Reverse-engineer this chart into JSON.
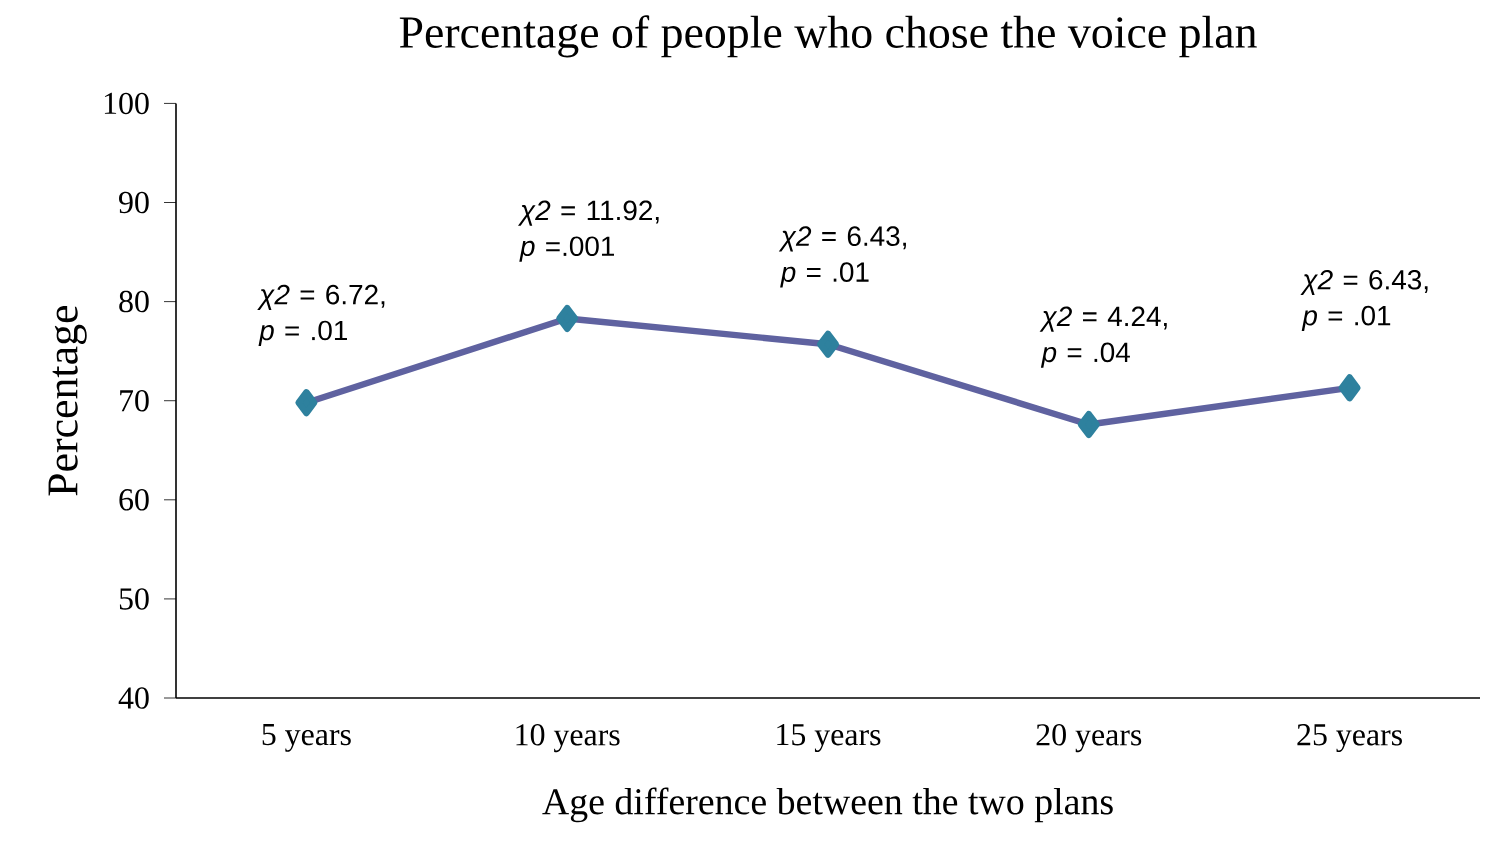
{
  "chart_data": {
    "type": "line",
    "title": "Percentage of people who chose the voice plan",
    "xlabel": "Age difference between the two plans",
    "ylabel": "Percentage",
    "categories": [
      "5 years",
      "10 years",
      "15 years",
      "20 years",
      "25 years"
    ],
    "series": [
      {
        "color": "#5f62a0",
        "values": [
          69.8,
          78.3,
          75.7,
          67.6,
          71.3
        ]
      }
    ],
    "ylim": [
      40,
      100
    ],
    "yticks": [
      40,
      50,
      60,
      70,
      80,
      90,
      100
    ],
    "marker": "diamond",
    "grid": false,
    "legend": false,
    "annotations": [
      {
        "text": "*χ2* = 6.72, *p* = .01",
        "x": "5 years",
        "y": 69.8
      },
      {
        "text": "*χ2* = 11.92, *p* =.001",
        "x": "10 years",
        "y": 78.3
      },
      {
        "text": "*χ2* = 6.43, *p* = .01",
        "x": "15 years",
        "y": 75.7
      },
      {
        "text": "*χ2* = 4.24, *p* = .04",
        "x": "20 years",
        "y": 67.6
      },
      {
        "text": "*χ2* = 6.43, *p* = .01",
        "x": "25 years",
        "y": 71.3
      }
    ]
  }
}
